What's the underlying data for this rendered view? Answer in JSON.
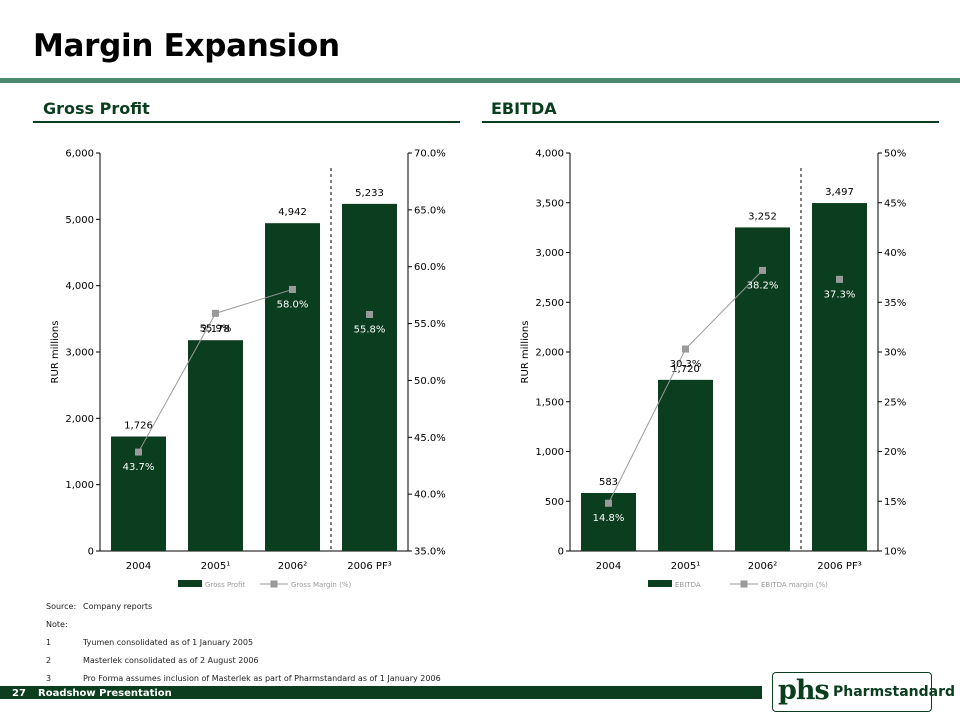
{
  "page": {
    "title": "Margin Expansion",
    "page_number": "27",
    "footer_label": "Roadshow Presentation",
    "logo_mark": "phs",
    "logo_text": "Pharmstandard"
  },
  "colors": {
    "bar": "#0b3d1f",
    "line": "#9a9a9a",
    "accent": "#4a8a6f"
  },
  "sections": {
    "left_title": "Gross Profit",
    "right_title": "EBITDA"
  },
  "notes": [
    {
      "key": "Source:",
      "text": "Company reports"
    },
    {
      "key": "Note:",
      "text": ""
    },
    {
      "key": "1",
      "text": "Tyumen consolidated as of 1 January 2005"
    },
    {
      "key": "2",
      "text": "Masterlek consolidated as of 2 August  2006"
    },
    {
      "key": "3",
      "text": "Pro Forma assumes inclusion  of Masterlek as part of Pharmstandard as of 1 January 2006"
    }
  ],
  "chart_data": [
    {
      "type": "bar",
      "title": "Gross Profit",
      "categories": [
        "2004",
        "2005¹",
        "2006²",
        "2006 PF³"
      ],
      "ylabel": "RUR millions",
      "ylim": [
        0,
        6000
      ],
      "yticks": [
        "0",
        "1,000",
        "2,000",
        "3,000",
        "4,000",
        "5,000",
        "6,000"
      ],
      "y2lim": [
        35,
        70
      ],
      "y2ticks": [
        "35.0%",
        "40.0%",
        "45.0%",
        "50.0%",
        "55.0%",
        "60.0%",
        "65.0%",
        "70.0%"
      ],
      "series": [
        {
          "name": "Gross Profit",
          "kind": "bar",
          "values": [
            1726,
            3178,
            4942,
            5233
          ],
          "labels": [
            "1,726",
            "3,178",
            "4,942",
            "5,233"
          ]
        },
        {
          "name": "Gross Margin (%)",
          "kind": "line",
          "axis": "right",
          "values": [
            43.7,
            55.9,
            58.0,
            55.8
          ],
          "labels": [
            "43.7%",
            "55.9%",
            "58.0%",
            "55.8%"
          ]
        }
      ],
      "separator_before_last": true,
      "legend": "bottom"
    },
    {
      "type": "bar",
      "title": "EBITDA",
      "categories": [
        "2004",
        "2005¹",
        "2006²",
        "2006 PF³"
      ],
      "ylabel": "RUR millions",
      "ylim": [
        0,
        4000
      ],
      "yticks": [
        "0",
        "500",
        "1,000",
        "1,500",
        "2,000",
        "2,500",
        "3,000",
        "3,500",
        "4,000"
      ],
      "y2lim": [
        10,
        50
      ],
      "y2ticks": [
        "10%",
        "15%",
        "20%",
        "25%",
        "30%",
        "35%",
        "40%",
        "45%",
        "50%"
      ],
      "series": [
        {
          "name": "EBITDA",
          "kind": "bar",
          "values": [
            583,
            1720,
            3252,
            3497
          ],
          "labels": [
            "583",
            "1,720",
            "3,252",
            "3,497"
          ]
        },
        {
          "name": "EBITDA margin (%)",
          "kind": "line",
          "axis": "right",
          "values": [
            14.8,
            30.3,
            38.2,
            37.3
          ],
          "labels": [
            "14.8%",
            "30.3%",
            "38.2%",
            "37.3%"
          ]
        }
      ],
      "separator_before_last": true,
      "legend": "bottom"
    }
  ]
}
